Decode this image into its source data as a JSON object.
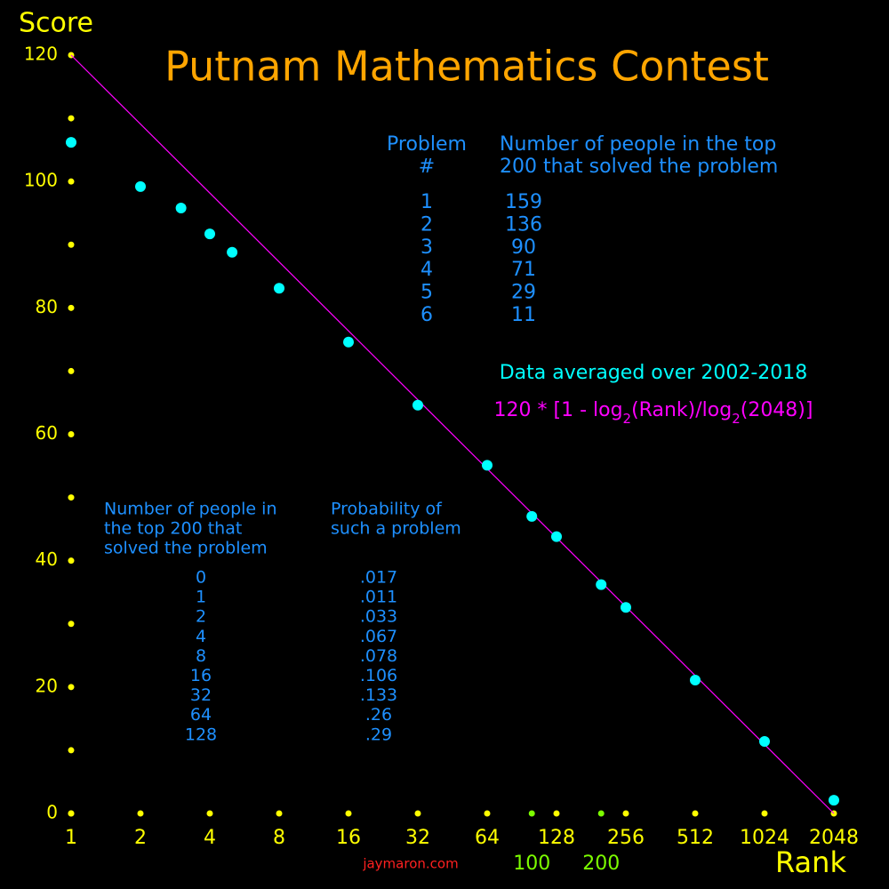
{
  "chart_data": {
    "type": "scatter",
    "title": "Putnam Mathematics Contest",
    "x_label": "Rank",
    "y_label": "Score",
    "x_log_base": 2,
    "xlim": [
      1,
      2048
    ],
    "ylim": [
      0,
      120
    ],
    "xticks": [
      1,
      2,
      4,
      8,
      16,
      32,
      64,
      128,
      256,
      512,
      1024,
      2048
    ],
    "yticks": [
      0,
      20,
      40,
      60,
      80,
      100,
      120
    ],
    "y_minor_ticks": [
      10,
      30,
      50,
      70,
      90,
      110
    ],
    "x_extra_ticks": {
      "values": [
        100,
        200
      ],
      "color": "#7cfc00"
    },
    "tick_color": "#ffff00",
    "series": [
      {
        "type": "scatter",
        "color": "#00ffff",
        "x": [
          1,
          2,
          3,
          4,
          5,
          8,
          16,
          32,
          64,
          100,
          128,
          200,
          256,
          512,
          1024,
          2048
        ],
        "values": [
          106.2,
          99.2,
          95.8,
          91.7,
          88.8,
          83.1,
          74.6,
          64.6,
          55.1,
          47.0,
          43.8,
          36.2,
          32.6,
          21.1,
          11.4,
          2.1
        ]
      },
      {
        "type": "line",
        "color": "#ff00ff",
        "x": [
          1,
          2048
        ],
        "values": [
          120,
          0
        ]
      }
    ]
  },
  "annotations": {
    "averaged": "Data averaged over 2002-2018",
    "formula": [
      "120 * [1 - log",
      "2",
      "(Rank)/log",
      "2",
      "(2048)]"
    ],
    "credit": "jaymaron.com"
  },
  "problem_table": {
    "headers": [
      [
        "Problem",
        "#"
      ],
      [
        "Number of people in the top",
        "200 that solved the problem"
      ]
    ],
    "rows": [
      [
        1,
        159
      ],
      [
        2,
        136
      ],
      [
        3,
        90
      ],
      [
        4,
        71
      ],
      [
        5,
        29
      ],
      [
        6,
        11
      ]
    ]
  },
  "probability_table": {
    "headers": [
      [
        "Number of people in",
        "the top 200 that",
        "solved the problem"
      ],
      [
        "Probability of",
        "such a problem"
      ]
    ],
    "rows": [
      [
        0,
        ".017"
      ],
      [
        1,
        ".011"
      ],
      [
        2,
        ".033"
      ],
      [
        4,
        ".067"
      ],
      [
        8,
        ".078"
      ],
      [
        16,
        ".106"
      ],
      [
        32,
        ".133"
      ],
      [
        64,
        ".26"
      ],
      [
        128,
        ".29"
      ]
    ]
  }
}
